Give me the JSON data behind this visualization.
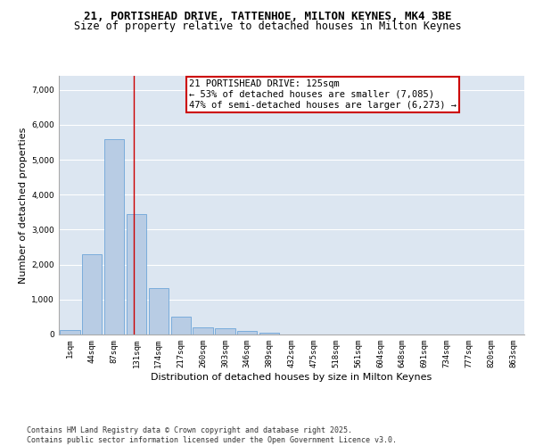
{
  "title_line1": "21, PORTISHEAD DRIVE, TATTENHOE, MILTON KEYNES, MK4 3BE",
  "title_line2": "Size of property relative to detached houses in Milton Keynes",
  "xlabel": "Distribution of detached houses by size in Milton Keynes",
  "ylabel": "Number of detached properties",
  "bar_color": "#b8cce4",
  "bar_edgecolor": "#5b9bd5",
  "categories": [
    "1sqm",
    "44sqm",
    "87sqm",
    "131sqm",
    "174sqm",
    "217sqm",
    "260sqm",
    "303sqm",
    "346sqm",
    "389sqm",
    "432sqm",
    "475sqm",
    "518sqm",
    "561sqm",
    "604sqm",
    "648sqm",
    "691sqm",
    "734sqm",
    "777sqm",
    "820sqm",
    "863sqm"
  ],
  "values": [
    130,
    2300,
    5600,
    3450,
    1320,
    500,
    200,
    175,
    90,
    55,
    0,
    0,
    0,
    0,
    0,
    0,
    0,
    0,
    0,
    0,
    0
  ],
  "vline_color": "#cc0000",
  "annotation_text": "21 PORTISHEAD DRIVE: 125sqm\n← 53% of detached houses are smaller (7,085)\n47% of semi-detached houses are larger (6,273) →",
  "annotation_box_edgecolor": "#cc0000",
  "ylim": [
    0,
    7400
  ],
  "yticks": [
    0,
    1000,
    2000,
    3000,
    4000,
    5000,
    6000,
    7000
  ],
  "footnote": "Contains HM Land Registry data © Crown copyright and database right 2025.\nContains public sector information licensed under the Open Government Licence v3.0.",
  "background_color": "#dce6f1",
  "grid_color": "#ffffff",
  "title_fontsize": 9,
  "subtitle_fontsize": 8.5,
  "axis_label_fontsize": 8,
  "tick_fontsize": 6.5,
  "annotation_fontsize": 7.5,
  "footnote_fontsize": 6
}
